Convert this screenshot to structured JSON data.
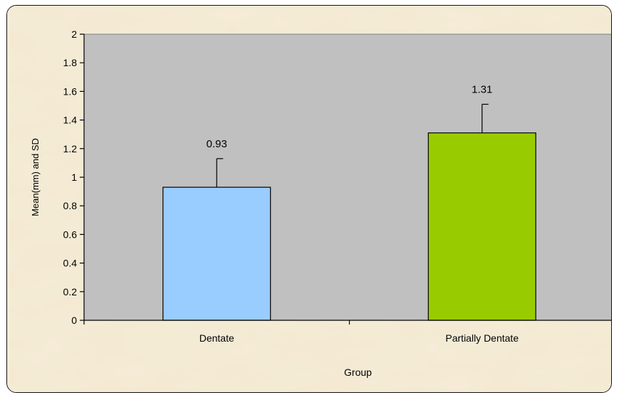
{
  "chart_data": {
    "type": "bar",
    "categories": [
      "Dentate",
      "Partially Dentate"
    ],
    "values": [
      0.93,
      1.31
    ],
    "error": [
      0.2,
      0.2
    ],
    "data_labels": [
      "0.93",
      "1.31"
    ],
    "xlabel": "Group",
    "ylabel": "Mean(mm) and SD",
    "ylim": [
      0,
      2
    ],
    "yticks": [
      0,
      0.2,
      0.4,
      0.6,
      0.8,
      1,
      1.2,
      1.4,
      1.6,
      1.8,
      2
    ],
    "ytick_labels": [
      "0",
      "0.2",
      "0.4",
      "0.6",
      "0.8",
      "1",
      "1.2",
      "1.4",
      "1.6",
      "1.8",
      "2"
    ],
    "colors": [
      "#99ccff",
      "#99cc00"
    ],
    "plot_background": "#c0c0c0",
    "grid": false,
    "legend": false
  }
}
